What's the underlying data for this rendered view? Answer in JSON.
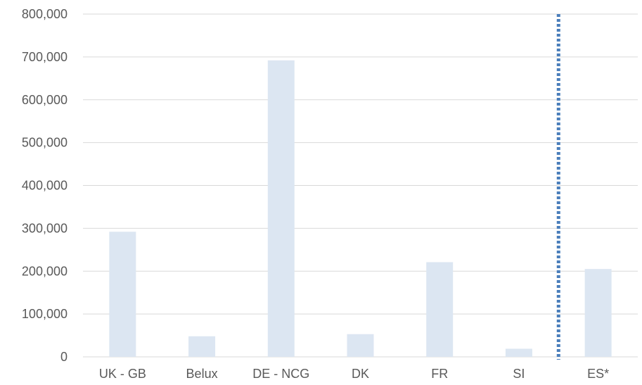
{
  "chart_data": {
    "type": "bar",
    "title": "",
    "xlabel": "",
    "ylabel": "",
    "categories": [
      "UK - GB",
      "Belux",
      "DE - NCG",
      "DK",
      "FR",
      "SI",
      "ES*"
    ],
    "values": [
      292000,
      48000,
      692000,
      53000,
      221000,
      19000,
      205000
    ],
    "ylim": [
      0,
      800000
    ],
    "yticks": [
      0,
      100000,
      200000,
      300000,
      400000,
      500000,
      600000,
      700000,
      800000
    ],
    "ytick_labels": [
      "0",
      "100,000",
      "200,000",
      "300,000",
      "400,000",
      "500,000",
      "600,000",
      "700,000",
      "800,000"
    ],
    "grid": true,
    "legend": "none",
    "bar_color": "#dce6f2",
    "divider": {
      "between": [
        "SI",
        "ES*"
      ],
      "style": "dotted",
      "color": "#4a7ebb"
    }
  }
}
